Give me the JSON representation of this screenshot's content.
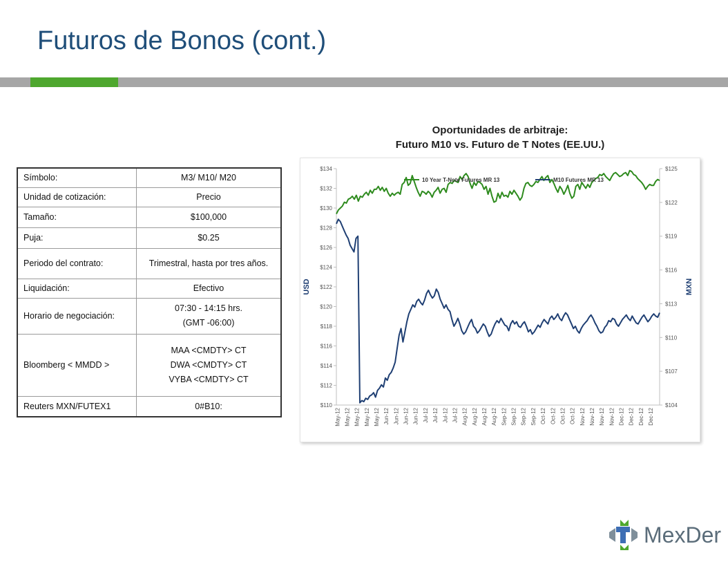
{
  "page": {
    "title": "Futuros de Bonos (cont.)"
  },
  "spec_table": {
    "rows": [
      {
        "label": "Símbolo:",
        "value": [
          "M3/ M10/ M20"
        ]
      },
      {
        "label": "Unidad de cotización:",
        "value": [
          "Precio"
        ]
      },
      {
        "label": "Tamaño:",
        "value": [
          "$100,000"
        ]
      },
      {
        "label": "Puja:",
        "value": [
          "$0.25"
        ]
      },
      {
        "label": "Periodo del contrato:",
        "value": [
          "Trimestral, hasta por tres años."
        ]
      },
      {
        "label": "Liquidación:",
        "value": [
          "Efectivo"
        ]
      },
      {
        "label": "Horario de negociación:",
        "value": [
          "07:30 - 14:15 hrs.",
          "(GMT -06:00)"
        ]
      },
      {
        "label": "Bloomberg < MMDD >",
        "value": [
          "MAA <CMDTY> CT",
          "DWA <CMDTY> CT",
          "VYBA <CMDTY> CT"
        ]
      },
      {
        "label": "Reuters MXN/FUTEX1",
        "value": [
          "0#B10:"
        ]
      }
    ]
  },
  "chart_header": {
    "line1": "Oportunidades de arbitraje:",
    "line2": "Futuro M10 vs. Futuro de T Notes (EE.UU.)"
  },
  "chart_data": {
    "type": "line",
    "xlabel": "",
    "ylabel": "USD",
    "y2label": "MXN",
    "ylim": [
      110,
      134
    ],
    "y_ticks": [
      "$110",
      "$112",
      "$114",
      "$116",
      "$118",
      "$120",
      "$122",
      "$124",
      "$126",
      "$128",
      "$130",
      "$132",
      "$134"
    ],
    "y2lim": [
      104,
      125
    ],
    "y2_ticks": [
      "$104",
      "$107",
      "$110",
      "$113",
      "$116",
      "$119",
      "$122",
      "$125"
    ],
    "x_labels": [
      "May-12",
      "May-12",
      "May-12",
      "May-12",
      "May-12",
      "Jun-12",
      "Jun-12",
      "Jun-12",
      "Jun-12",
      "Jul-12",
      "Jul-12",
      "Jul-12",
      "Jul-12",
      "Aug-12",
      "Aug-12",
      "Aug-12",
      "Aug-12",
      "Sep-12",
      "Sep-12",
      "Sep-12",
      "Sep-12",
      "Oct-12",
      "Oct-12",
      "Oct-12",
      "Oct-12",
      "Nov-12",
      "Nov-12",
      "Nov-12",
      "Nov-12",
      "Dec-12",
      "Dec-12",
      "Dec-12",
      "Dec-12"
    ],
    "grid": false,
    "legend": "top",
    "series": [
      {
        "name": "10 Year T-Note Futures MR 13",
        "axis": "left",
        "color": "#2e8b1e",
        "values": [
          129.4,
          129.8,
          130.0,
          130.2,
          130.6,
          130.5,
          130.9,
          131.0,
          131.2,
          130.9,
          131.3,
          130.7,
          131.2,
          131.1,
          131.4,
          131.6,
          131.3,
          131.8,
          131.5,
          131.9,
          131.9,
          132.2,
          131.8,
          132.1,
          131.7,
          132.0,
          131.5,
          131.2,
          131.5,
          131.3,
          131.5,
          131.6,
          131.4,
          132.4,
          132.6,
          133.1,
          132.3,
          132.5,
          133.3,
          132.7,
          132.1,
          131.6,
          131.2,
          131.7,
          131.6,
          131.4,
          131.7,
          131.5,
          131.1,
          131.6,
          131.8,
          132.1,
          131.5,
          131.9,
          132.0,
          131.6,
          132.4,
          132.6,
          132.5,
          132.8,
          132.7,
          132.6,
          133.2,
          132.9,
          133.3,
          133.5,
          133.2,
          132.5,
          132.0,
          132.6,
          132.3,
          132.7,
          132.6,
          132.4,
          131.9,
          132.2,
          131.4,
          132.0,
          131.2,
          130.6,
          130.7,
          131.5,
          131.0,
          131.6,
          131.2,
          131.3,
          131.1,
          131.7,
          131.4,
          131.8,
          131.5,
          131.2,
          130.8,
          131.1,
          132.0,
          132.5,
          132.6,
          132.3,
          132.2,
          132.4,
          132.7,
          132.6,
          132.9,
          133.2,
          132.8,
          133.1,
          133.3,
          132.6,
          132.9,
          132.5,
          132.0,
          131.6,
          132.2,
          131.9,
          131.4,
          131.8,
          132.3,
          131.5,
          131.0,
          131.2,
          132.2,
          132.4,
          131.9,
          132.6,
          132.3,
          132.0,
          132.4,
          132.1,
          132.6,
          132.8,
          133.0,
          133.1,
          133.4,
          133.3,
          133.5,
          133.2,
          133.0,
          132.8,
          133.2,
          133.5,
          133.6,
          133.4,
          133.2,
          133.3,
          133.5,
          133.6,
          133.3,
          133.8,
          133.7,
          133.4,
          133.3,
          133.0,
          132.8,
          132.6,
          132.3,
          131.9,
          132.2,
          132.4,
          132.3,
          132.3,
          132.7,
          132.9,
          132.8
        ]
      },
      {
        "name": "M10 Futures MR 13",
        "axis": "right",
        "color": "#1f3f73",
        "values": [
          120.1,
          120.5,
          120.3,
          119.9,
          119.5,
          119.1,
          118.8,
          118.2,
          117.9,
          117.6,
          118.8,
          119.0,
          104.2,
          104.4,
          104.3,
          104.6,
          104.5,
          104.8,
          104.9,
          105.1,
          104.7,
          105.3,
          105.5,
          105.8,
          105.6,
          106.4,
          106.2,
          106.7,
          106.9,
          107.3,
          107.8,
          109.0,
          110.2,
          110.8,
          109.6,
          110.5,
          111.4,
          112.1,
          112.5,
          112.9,
          112.7,
          113.2,
          113.4,
          113.1,
          112.9,
          113.3,
          113.9,
          114.2,
          113.8,
          113.5,
          113.7,
          114.3,
          114.0,
          113.4,
          113.0,
          112.6,
          112.9,
          112.5,
          112.3,
          111.6,
          111.0,
          111.3,
          111.7,
          111.2,
          110.6,
          110.3,
          110.5,
          110.9,
          111.3,
          111.6,
          111.0,
          110.8,
          110.4,
          110.6,
          110.9,
          111.2,
          111.0,
          110.5,
          110.1,
          110.3,
          110.8,
          111.2,
          111.5,
          111.3,
          111.7,
          111.4,
          111.1,
          111.0,
          110.6,
          111.2,
          111.5,
          111.2,
          111.4,
          111.0,
          110.9,
          111.2,
          111.4,
          111.0,
          110.5,
          110.7,
          110.3,
          110.5,
          110.8,
          111.1,
          110.9,
          111.3,
          111.6,
          111.4,
          111.2,
          111.7,
          111.9,
          111.6,
          111.8,
          112.1,
          111.7,
          111.5,
          111.9,
          112.2,
          112.0,
          111.6,
          111.2,
          110.8,
          111.0,
          110.6,
          110.4,
          110.8,
          111.1,
          111.3,
          111.5,
          111.8,
          112.0,
          111.7,
          111.3,
          111.0,
          110.6,
          110.4,
          110.5,
          110.9,
          111.1,
          111.5,
          111.4,
          111.7,
          111.6,
          111.2,
          111.0,
          111.3,
          111.6,
          111.8,
          112.0,
          111.7,
          111.5,
          111.9,
          111.6,
          111.3,
          111.2,
          111.5,
          111.8,
          112.0,
          111.7,
          111.4,
          111.6,
          111.9,
          112.1,
          111.9,
          111.8,
          112.2
        ]
      }
    ]
  },
  "logo": {
    "text": "MexDer",
    "brand_green": "#4ea72e",
    "brand_blue": "#3d6eb4",
    "brand_gray": "#7f8f9b"
  }
}
